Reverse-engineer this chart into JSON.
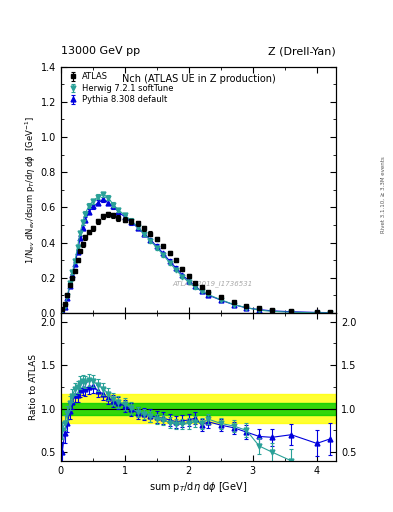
{
  "title_top_left": "13000 GeV pp",
  "title_top_right": "Z (Drell-Yan)",
  "plot_title": "Nch (ATLAS UE in Z production)",
  "ylabel_ratio": "Ratio to ATLAS",
  "xlabel": "sum p$_T$/dη dφ [GeV]",
  "right_label": "Rivet 3.1.10, ≥ 3.3M events",
  "watermark": "ATLAS_2019_I1736531",
  "atlas_x": [
    0.02,
    0.06,
    0.1,
    0.14,
    0.18,
    0.22,
    0.26,
    0.3,
    0.34,
    0.38,
    0.44,
    0.5,
    0.58,
    0.66,
    0.74,
    0.82,
    0.9,
    1.0,
    1.1,
    1.2,
    1.3,
    1.4,
    1.5,
    1.6,
    1.7,
    1.8,
    1.9,
    2.0,
    2.1,
    2.2,
    2.3,
    2.5,
    2.7,
    2.9,
    3.1,
    3.3,
    3.6,
    4.0,
    4.2
  ],
  "atlas_y": [
    0.02,
    0.05,
    0.1,
    0.16,
    0.2,
    0.24,
    0.3,
    0.35,
    0.39,
    0.43,
    0.46,
    0.48,
    0.52,
    0.55,
    0.56,
    0.555,
    0.54,
    0.53,
    0.52,
    0.51,
    0.48,
    0.45,
    0.42,
    0.38,
    0.34,
    0.3,
    0.25,
    0.21,
    0.17,
    0.15,
    0.12,
    0.09,
    0.06,
    0.04,
    0.028,
    0.018,
    0.01,
    0.005,
    0.003
  ],
  "atlas_yerr": [
    0.003,
    0.005,
    0.008,
    0.01,
    0.01,
    0.01,
    0.012,
    0.012,
    0.013,
    0.014,
    0.014,
    0.014,
    0.015,
    0.015,
    0.015,
    0.015,
    0.015,
    0.015,
    0.015,
    0.015,
    0.014,
    0.014,
    0.013,
    0.012,
    0.012,
    0.011,
    0.01,
    0.009,
    0.008,
    0.007,
    0.006,
    0.005,
    0.004,
    0.003,
    0.003,
    0.002,
    0.001,
    0.001,
    0.001
  ],
  "herwig_x": [
    0.02,
    0.06,
    0.1,
    0.14,
    0.18,
    0.22,
    0.26,
    0.3,
    0.34,
    0.38,
    0.44,
    0.5,
    0.58,
    0.66,
    0.74,
    0.82,
    0.9,
    1.0,
    1.1,
    1.2,
    1.3,
    1.4,
    1.5,
    1.6,
    1.7,
    1.8,
    1.9,
    2.0,
    2.1,
    2.2,
    2.3,
    2.5,
    2.7,
    2.9,
    3.1,
    3.3,
    3.6,
    4.0,
    4.2
  ],
  "herwig_y": [
    0.015,
    0.042,
    0.095,
    0.17,
    0.23,
    0.295,
    0.375,
    0.455,
    0.515,
    0.565,
    0.61,
    0.635,
    0.66,
    0.675,
    0.655,
    0.615,
    0.585,
    0.555,
    0.525,
    0.49,
    0.45,
    0.41,
    0.37,
    0.33,
    0.285,
    0.245,
    0.205,
    0.175,
    0.145,
    0.125,
    0.105,
    0.075,
    0.048,
    0.03,
    0.016,
    0.009,
    0.004,
    0.001,
    0.0006
  ],
  "herwig_yerr": [
    0.002,
    0.004,
    0.006,
    0.008,
    0.009,
    0.01,
    0.011,
    0.012,
    0.013,
    0.014,
    0.014,
    0.014,
    0.015,
    0.015,
    0.015,
    0.014,
    0.014,
    0.014,
    0.013,
    0.013,
    0.012,
    0.012,
    0.011,
    0.01,
    0.01,
    0.009,
    0.008,
    0.007,
    0.007,
    0.006,
    0.005,
    0.004,
    0.003,
    0.002,
    0.002,
    0.001,
    0.001,
    0.0005,
    0.0003
  ],
  "pythia_x": [
    0.02,
    0.06,
    0.1,
    0.14,
    0.18,
    0.22,
    0.26,
    0.3,
    0.34,
    0.38,
    0.44,
    0.5,
    0.58,
    0.66,
    0.74,
    0.82,
    0.9,
    1.0,
    1.1,
    1.2,
    1.3,
    1.4,
    1.5,
    1.6,
    1.7,
    1.8,
    1.9,
    2.0,
    2.1,
    2.2,
    2.3,
    2.5,
    2.7,
    2.9,
    3.1,
    3.3,
    3.6,
    4.0,
    4.2
  ],
  "pythia_y": [
    0.01,
    0.036,
    0.083,
    0.155,
    0.215,
    0.278,
    0.348,
    0.425,
    0.485,
    0.53,
    0.575,
    0.605,
    0.625,
    0.645,
    0.625,
    0.605,
    0.575,
    0.545,
    0.515,
    0.485,
    0.45,
    0.415,
    0.378,
    0.338,
    0.295,
    0.255,
    0.215,
    0.182,
    0.152,
    0.122,
    0.102,
    0.073,
    0.047,
    0.029,
    0.019,
    0.012,
    0.007,
    0.003,
    0.002
  ],
  "pythia_yerr": [
    0.002,
    0.004,
    0.006,
    0.008,
    0.009,
    0.01,
    0.011,
    0.012,
    0.013,
    0.013,
    0.014,
    0.014,
    0.014,
    0.015,
    0.014,
    0.014,
    0.014,
    0.013,
    0.013,
    0.012,
    0.012,
    0.011,
    0.011,
    0.01,
    0.01,
    0.009,
    0.008,
    0.008,
    0.007,
    0.006,
    0.006,
    0.005,
    0.004,
    0.003,
    0.003,
    0.002,
    0.002,
    0.001,
    0.001
  ],
  "herwig_ratio": [
    0.75,
    0.84,
    0.95,
    1.06,
    1.15,
    1.23,
    1.25,
    1.3,
    1.32,
    1.31,
    1.33,
    1.32,
    1.27,
    1.23,
    1.17,
    1.11,
    1.08,
    1.05,
    1.01,
    0.96,
    0.94,
    0.91,
    0.88,
    0.87,
    0.84,
    0.82,
    0.82,
    0.83,
    0.85,
    0.83,
    0.88,
    0.83,
    0.8,
    0.75,
    0.57,
    0.5,
    0.4,
    0.2,
    0.2
  ],
  "pythia_ratio": [
    0.5,
    0.72,
    0.83,
    0.97,
    1.08,
    1.16,
    1.16,
    1.21,
    1.24,
    1.23,
    1.25,
    1.26,
    1.2,
    1.17,
    1.12,
    1.09,
    1.06,
    1.03,
    0.99,
    0.95,
    0.94,
    0.92,
    0.9,
    0.89,
    0.87,
    0.85,
    0.86,
    0.87,
    0.89,
    0.81,
    0.85,
    0.81,
    0.78,
    0.73,
    0.68,
    0.67,
    0.7,
    0.6,
    0.65
  ],
  "herwig_ratio_err": [
    0.1,
    0.09,
    0.08,
    0.08,
    0.07,
    0.07,
    0.07,
    0.07,
    0.07,
    0.07,
    0.07,
    0.07,
    0.07,
    0.07,
    0.07,
    0.07,
    0.07,
    0.07,
    0.07,
    0.06,
    0.06,
    0.06,
    0.06,
    0.06,
    0.06,
    0.06,
    0.06,
    0.06,
    0.06,
    0.06,
    0.06,
    0.06,
    0.07,
    0.08,
    0.09,
    0.11,
    0.13,
    0.15,
    0.18
  ],
  "pythia_ratio_err": [
    0.12,
    0.11,
    0.1,
    0.09,
    0.08,
    0.08,
    0.08,
    0.08,
    0.08,
    0.08,
    0.08,
    0.08,
    0.07,
    0.07,
    0.07,
    0.07,
    0.07,
    0.07,
    0.07,
    0.07,
    0.07,
    0.07,
    0.07,
    0.07,
    0.07,
    0.07,
    0.07,
    0.07,
    0.07,
    0.07,
    0.07,
    0.07,
    0.07,
    0.08,
    0.09,
    0.1,
    0.12,
    0.15,
    0.18
  ],
  "green_band_lo": 0.93,
  "green_band_hi": 1.07,
  "yellow_band_lo": 0.83,
  "yellow_band_hi": 1.17,
  "atlas_color": "#000000",
  "herwig_color": "#2aa198",
  "pythia_color": "#0000dd",
  "xlim": [
    0.0,
    4.3
  ],
  "ylim_main": [
    0.0,
    1.4
  ],
  "ylim_ratio": [
    0.4,
    2.1
  ],
  "yticks_main": [
    0.0,
    0.2,
    0.4,
    0.6,
    0.8,
    1.0,
    1.2,
    1.4
  ],
  "yticks_ratio": [
    0.5,
    1.0,
    1.5,
    2.0
  ],
  "xticks": [
    0,
    1,
    2,
    3,
    4
  ]
}
